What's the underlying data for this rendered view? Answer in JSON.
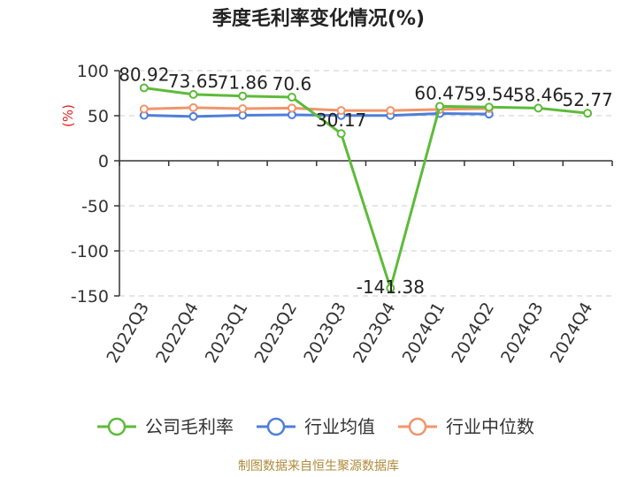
{
  "chart_data": {
    "type": "line",
    "title": "季度毛利率变化情况(%)",
    "ylabel": "(%)",
    "xlabel": "",
    "categories": [
      "2022Q3",
      "2022Q4",
      "2023Q1",
      "2023Q2",
      "2023Q3",
      "2023Q4",
      "2024Q1",
      "2024Q2",
      "2024Q3",
      "2024Q4"
    ],
    "ylim": [
      -150,
      100
    ],
    "yticks": [
      100,
      50,
      0,
      -50,
      -100,
      -150
    ],
    "grid": true,
    "legend_position": "bottom",
    "series": [
      {
        "name": "公司毛利率",
        "color": "#5dbb3a",
        "values": [
          80.92,
          73.65,
          71.86,
          70.6,
          30.17,
          -141.38,
          60.47,
          59.54,
          58.46,
          52.77
        ],
        "labels": [
          "80.92",
          "73.65",
          "71.86",
          "70.6",
          "30.17",
          "-141.38",
          "60.47",
          "59.54",
          "58.46",
          "52.77"
        ]
      },
      {
        "name": "行业均值",
        "color": "#4e7fd9",
        "values": [
          50.5,
          49.2,
          50.5,
          51.0,
          50.3,
          50.3,
          52.5,
          51.8,
          null,
          null
        ]
      },
      {
        "name": "行业中位数",
        "color": "#f0956a",
        "values": [
          57.5,
          59.0,
          57.8,
          58.5,
          55.8,
          55.8,
          57.0,
          58.0,
          null,
          null
        ]
      }
    ]
  },
  "source": "制图数据来自恒生聚源数据库"
}
